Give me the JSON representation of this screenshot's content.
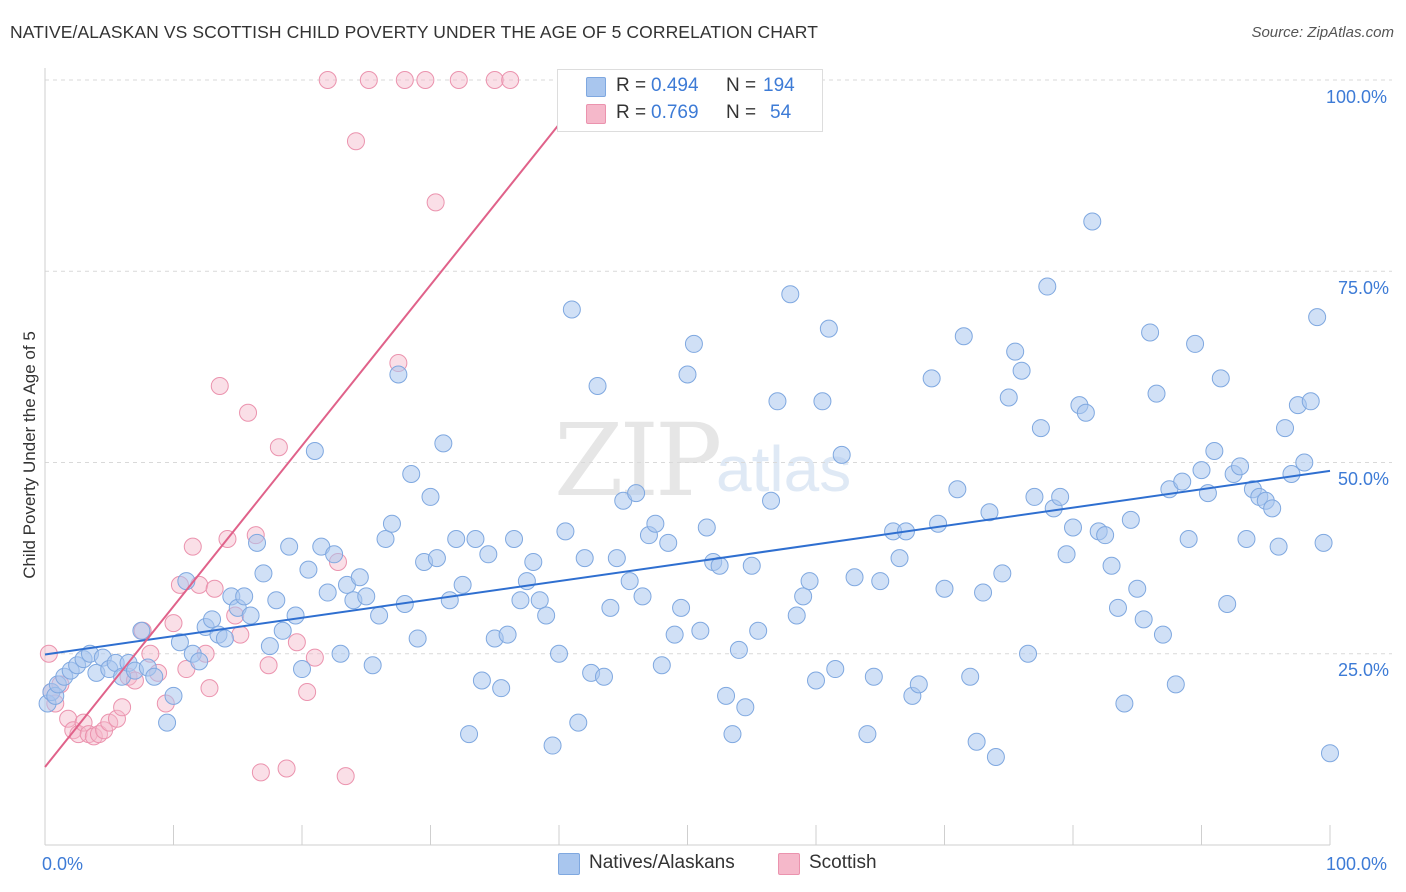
{
  "header": {
    "title": "NATIVE/ALASKAN VS SCOTTISH CHILD POVERTY UNDER THE AGE OF 5 CORRELATION CHART",
    "source": "Source: ZipAtlas.com"
  },
  "watermark": {
    "zip": "ZIP",
    "atlas": "atlas"
  },
  "legend": {
    "rows": [
      {
        "r_label": "R =",
        "r_value": "0.494",
        "n_label": "N =",
        "n_value": "194",
        "color": "#a9c6ee"
      },
      {
        "r_label": "R =",
        "r_value": "0.769",
        "n_label": "N =",
        "n_value": "54",
        "color": "#f5b8ca"
      }
    ]
  },
  "bottom_legend": {
    "items": [
      {
        "label": "Natives/Alaskans",
        "color": "#a9c6ee"
      },
      {
        "label": "Scottish",
        "color": "#f5b8ca"
      }
    ]
  },
  "chart_data": {
    "type": "scatter",
    "ylabel": "Child Poverty Under the Age of 5",
    "xlabel": "",
    "xlim": [
      0,
      100
    ],
    "ylim": [
      0,
      100
    ],
    "x_tick_labels": [
      "0.0%",
      "100.0%"
    ],
    "y_tick_labels": [
      "25.0%",
      "50.0%",
      "75.0%",
      "100.0%"
    ],
    "grid": true,
    "legend_position": "top-center",
    "colors": {
      "blue_fill": "#a9c6ee",
      "blue_line": "#2f6fd0",
      "pink_fill": "#f5b8ca",
      "pink_line": "#e0628a"
    },
    "series": [
      {
        "name": "Natives/Alaskans",
        "color": "#a9c6ee",
        "trend": {
          "x": [
            0,
            100
          ],
          "y": [
            24.9,
            48.9
          ]
        },
        "points": [
          [
            0.2,
            18.5
          ],
          [
            0.5,
            20.0
          ],
          [
            0.8,
            19.5
          ],
          [
            1.0,
            21.0
          ],
          [
            1.5,
            22.0
          ],
          [
            2.0,
            22.8
          ],
          [
            2.5,
            23.5
          ],
          [
            3.0,
            24.3
          ],
          [
            3.5,
            25.0
          ],
          [
            4.0,
            22.5
          ],
          [
            4.5,
            24.5
          ],
          [
            5.0,
            23.0
          ],
          [
            5.5,
            23.8
          ],
          [
            6.0,
            22.0
          ],
          [
            6.5,
            23.8
          ],
          [
            7.0,
            22.8
          ],
          [
            7.5,
            28.0
          ],
          [
            8.0,
            23.2
          ],
          [
            8.5,
            22.0
          ],
          [
            9.5,
            16.0
          ],
          [
            10.0,
            19.5
          ],
          [
            10.5,
            26.5
          ],
          [
            11.0,
            34.5
          ],
          [
            11.5,
            25.0
          ],
          [
            12.0,
            24.0
          ],
          [
            12.5,
            28.5
          ],
          [
            13.0,
            29.5
          ],
          [
            13.5,
            27.5
          ],
          [
            14.0,
            27.0
          ],
          [
            14.5,
            32.5
          ],
          [
            15.0,
            31.0
          ],
          [
            15.5,
            32.5
          ],
          [
            16.0,
            30.0
          ],
          [
            16.5,
            39.5
          ],
          [
            17.0,
            35.5
          ],
          [
            17.5,
            26.0
          ],
          [
            18.0,
            32.0
          ],
          [
            18.5,
            28.0
          ],
          [
            19.0,
            39.0
          ],
          [
            19.5,
            30.0
          ],
          [
            20.0,
            23.0
          ],
          [
            20.5,
            36.0
          ],
          [
            21.0,
            51.5
          ],
          [
            21.5,
            39.0
          ],
          [
            22.0,
            33.0
          ],
          [
            22.5,
            38.0
          ],
          [
            23.0,
            25.0
          ],
          [
            23.5,
            34.0
          ],
          [
            24.0,
            32.0
          ],
          [
            24.5,
            35.0
          ],
          [
            25.0,
            32.5
          ],
          [
            25.5,
            23.5
          ],
          [
            26.0,
            30.0
          ],
          [
            26.5,
            40.0
          ],
          [
            27.0,
            42.0
          ],
          [
            27.5,
            61.5
          ],
          [
            28.0,
            31.5
          ],
          [
            28.5,
            48.5
          ],
          [
            29.0,
            27.0
          ],
          [
            29.5,
            37.0
          ],
          [
            30.0,
            45.5
          ],
          [
            30.5,
            37.5
          ],
          [
            31.0,
            52.5
          ],
          [
            31.5,
            32.0
          ],
          [
            32.0,
            40.0
          ],
          [
            32.5,
            34.0
          ],
          [
            33.0,
            14.5
          ],
          [
            33.5,
            40.0
          ],
          [
            34.0,
            21.5
          ],
          [
            34.5,
            38.0
          ],
          [
            35.0,
            27.0
          ],
          [
            35.5,
            20.5
          ],
          [
            36.0,
            27.5
          ],
          [
            36.5,
            40.0
          ],
          [
            37.0,
            32.0
          ],
          [
            37.5,
            34.5
          ],
          [
            38.0,
            37.0
          ],
          [
            38.5,
            32.0
          ],
          [
            39.0,
            30.0
          ],
          [
            39.5,
            13.0
          ],
          [
            40.0,
            25.0
          ],
          [
            40.5,
            41.0
          ],
          [
            41.0,
            70.0
          ],
          [
            41.5,
            16.0
          ],
          [
            42.0,
            37.5
          ],
          [
            42.5,
            22.5
          ],
          [
            43.0,
            60.0
          ],
          [
            43.5,
            22.0
          ],
          [
            44.0,
            31.0
          ],
          [
            44.5,
            37.5
          ],
          [
            45.0,
            45.0
          ],
          [
            45.5,
            34.5
          ],
          [
            46.0,
            46.0
          ],
          [
            46.5,
            32.5
          ],
          [
            47.0,
            40.5
          ],
          [
            47.5,
            42.0
          ],
          [
            48.0,
            23.5
          ],
          [
            48.5,
            39.5
          ],
          [
            49.0,
            27.5
          ],
          [
            49.5,
            31.0
          ],
          [
            50.0,
            61.5
          ],
          [
            50.5,
            65.5
          ],
          [
            51.0,
            28.0
          ],
          [
            51.5,
            41.5
          ],
          [
            52.0,
            37.0
          ],
          [
            52.5,
            36.5
          ],
          [
            53.0,
            19.5
          ],
          [
            53.5,
            14.5
          ],
          [
            54.0,
            25.5
          ],
          [
            54.5,
            18.0
          ],
          [
            55.0,
            36.5
          ],
          [
            55.5,
            28.0
          ],
          [
            56.5,
            45.0
          ],
          [
            57.0,
            58.0
          ],
          [
            58.0,
            72.0
          ],
          [
            58.5,
            30.0
          ],
          [
            59.0,
            32.5
          ],
          [
            59.5,
            34.5
          ],
          [
            60.0,
            21.5
          ],
          [
            60.5,
            58.0
          ],
          [
            61.0,
            67.5
          ],
          [
            61.5,
            23.0
          ],
          [
            62.0,
            51.0
          ],
          [
            63.0,
            35.0
          ],
          [
            64.0,
            14.5
          ],
          [
            64.5,
            22.0
          ],
          [
            65.0,
            34.5
          ],
          [
            66.0,
            41.0
          ],
          [
            66.5,
            37.5
          ],
          [
            67.0,
            41.0
          ],
          [
            67.5,
            19.5
          ],
          [
            68.0,
            21.0
          ],
          [
            69.0,
            61.0
          ],
          [
            69.5,
            42.0
          ],
          [
            70.0,
            33.5
          ],
          [
            71.0,
            46.5
          ],
          [
            71.5,
            66.5
          ],
          [
            72.0,
            22.0
          ],
          [
            72.5,
            13.5
          ],
          [
            73.0,
            33.0
          ],
          [
            73.5,
            43.5
          ],
          [
            74.0,
            11.5
          ],
          [
            74.5,
            35.5
          ],
          [
            75.0,
            58.5
          ],
          [
            75.5,
            64.5
          ],
          [
            76.0,
            62.0
          ],
          [
            76.5,
            25.0
          ],
          [
            77.0,
            45.5
          ],
          [
            77.5,
            54.5
          ],
          [
            78.0,
            73.0
          ],
          [
            78.5,
            44.0
          ],
          [
            79.0,
            45.5
          ],
          [
            79.5,
            38.0
          ],
          [
            80.0,
            41.5
          ],
          [
            80.5,
            57.5
          ],
          [
            81.0,
            56.5
          ],
          [
            81.5,
            81.5
          ],
          [
            82.0,
            41.0
          ],
          [
            82.5,
            40.5
          ],
          [
            83.0,
            36.5
          ],
          [
            83.5,
            31.0
          ],
          [
            84.0,
            18.5
          ],
          [
            84.5,
            42.5
          ],
          [
            85.0,
            33.5
          ],
          [
            85.5,
            29.5
          ],
          [
            86.0,
            67.0
          ],
          [
            86.5,
            59.0
          ],
          [
            87.0,
            27.5
          ],
          [
            87.5,
            46.5
          ],
          [
            88.0,
            21.0
          ],
          [
            88.5,
            47.5
          ],
          [
            89.0,
            40.0
          ],
          [
            89.5,
            65.5
          ],
          [
            90.0,
            49.0
          ],
          [
            90.5,
            46.0
          ],
          [
            91.0,
            51.5
          ],
          [
            91.5,
            61.0
          ],
          [
            92.0,
            31.5
          ],
          [
            92.5,
            48.5
          ],
          [
            93.0,
            49.5
          ],
          [
            93.5,
            40.0
          ],
          [
            94.0,
            46.5
          ],
          [
            94.5,
            45.5
          ],
          [
            95.0,
            45.0
          ],
          [
            95.5,
            44.0
          ],
          [
            96.0,
            39.0
          ],
          [
            96.5,
            54.5
          ],
          [
            97.0,
            48.5
          ],
          [
            97.5,
            57.5
          ],
          [
            98.0,
            50.0
          ],
          [
            98.5,
            58.0
          ],
          [
            99.0,
            69.0
          ],
          [
            99.5,
            39.5
          ],
          [
            100.0,
            12.0
          ]
        ]
      },
      {
        "name": "Scottish",
        "color": "#f5b8ca",
        "trend": {
          "x": [
            0,
            43
          ],
          "y": [
            10.2,
            100.5
          ]
        },
        "points": [
          [
            0.3,
            25.0
          ],
          [
            0.5,
            20.0
          ],
          [
            0.8,
            18.5
          ],
          [
            1.2,
            21.0
          ],
          [
            1.8,
            16.5
          ],
          [
            2.2,
            15.0
          ],
          [
            2.6,
            14.5
          ],
          [
            3.0,
            16.0
          ],
          [
            3.4,
            14.5
          ],
          [
            3.8,
            14.2
          ],
          [
            4.2,
            14.5
          ],
          [
            4.6,
            15.0
          ],
          [
            5.0,
            16.0
          ],
          [
            5.6,
            16.5
          ],
          [
            6.0,
            18.0
          ],
          [
            6.5,
            22.0
          ],
          [
            7.0,
            21.5
          ],
          [
            7.6,
            28.0
          ],
          [
            8.2,
            25.0
          ],
          [
            8.8,
            22.5
          ],
          [
            9.4,
            18.5
          ],
          [
            10.0,
            29.0
          ],
          [
            10.5,
            34.0
          ],
          [
            11.0,
            23.0
          ],
          [
            11.5,
            39.0
          ],
          [
            12.0,
            34.0
          ],
          [
            12.5,
            25.0
          ],
          [
            12.8,
            20.5
          ],
          [
            13.2,
            33.5
          ],
          [
            13.6,
            60.0
          ],
          [
            14.2,
            40.0
          ],
          [
            14.8,
            30.0
          ],
          [
            15.2,
            27.5
          ],
          [
            15.8,
            56.5
          ],
          [
            16.4,
            40.5
          ],
          [
            16.8,
            9.5
          ],
          [
            17.4,
            23.5
          ],
          [
            18.2,
            52.0
          ],
          [
            18.8,
            10.0
          ],
          [
            19.6,
            26.5
          ],
          [
            20.4,
            20.0
          ],
          [
            21.0,
            24.5
          ],
          [
            22.0,
            100.0
          ],
          [
            22.8,
            37.0
          ],
          [
            23.4,
            9.0
          ],
          [
            24.2,
            92.0
          ],
          [
            25.2,
            100.0
          ],
          [
            27.5,
            63.0
          ],
          [
            28.0,
            100.0
          ],
          [
            29.6,
            100.0
          ],
          [
            30.4,
            84.0
          ],
          [
            32.2,
            100.0
          ],
          [
            35.0,
            100.0
          ],
          [
            36.2,
            100.0
          ]
        ]
      }
    ]
  }
}
